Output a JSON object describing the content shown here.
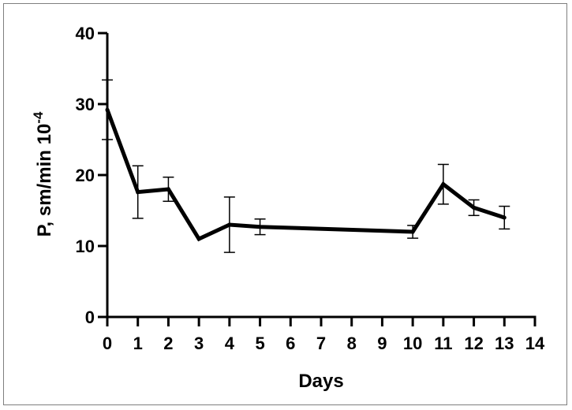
{
  "chart_data": {
    "type": "line",
    "title": "",
    "xlabel": "Days",
    "ylabel": "P, sm/min 10",
    "ylabel_superscript": "-4",
    "xlim": [
      0,
      14
    ],
    "ylim": [
      0,
      40
    ],
    "x_ticks": [
      0,
      1,
      2,
      3,
      4,
      5,
      6,
      7,
      8,
      9,
      10,
      11,
      12,
      13,
      14
    ],
    "x_tick_labels": [
      "0",
      "1",
      "2",
      "3",
      "4",
      "5",
      "6",
      "7",
      "8",
      "9",
      "10",
      "11",
      "12",
      "13",
      "14"
    ],
    "y_ticks": [
      0,
      10,
      20,
      30,
      40
    ],
    "y_tick_labels": [
      "0",
      "10",
      "20",
      "30",
      "40"
    ],
    "grid": false,
    "legend": "none",
    "series": [
      {
        "name": "P",
        "color": "#000000",
        "points": [
          {
            "x": 0,
            "y": 29.2,
            "err_low": 25.0,
            "err_high": 33.4
          },
          {
            "x": 1,
            "y": 17.6,
            "err_low": 13.9,
            "err_high": 21.3
          },
          {
            "x": 2,
            "y": 18.0,
            "err_low": 16.3,
            "err_high": 19.7
          },
          {
            "x": 3,
            "y": 11.0,
            "err_low": null,
            "err_high": null
          },
          {
            "x": 4,
            "y": 13.0,
            "err_low": 9.1,
            "err_high": 16.9
          },
          {
            "x": 5,
            "y": 12.7,
            "err_low": 11.6,
            "err_high": 13.8
          },
          {
            "x": 10,
            "y": 12.0,
            "err_low": 11.1,
            "err_high": 12.9
          },
          {
            "x": 11,
            "y": 18.7,
            "err_low": 15.9,
            "err_high": 21.5
          },
          {
            "x": 12,
            "y": 15.4,
            "err_low": 14.3,
            "err_high": 16.5
          },
          {
            "x": 13,
            "y": 14.0,
            "err_low": 12.4,
            "err_high": 15.6
          }
        ]
      }
    ]
  }
}
